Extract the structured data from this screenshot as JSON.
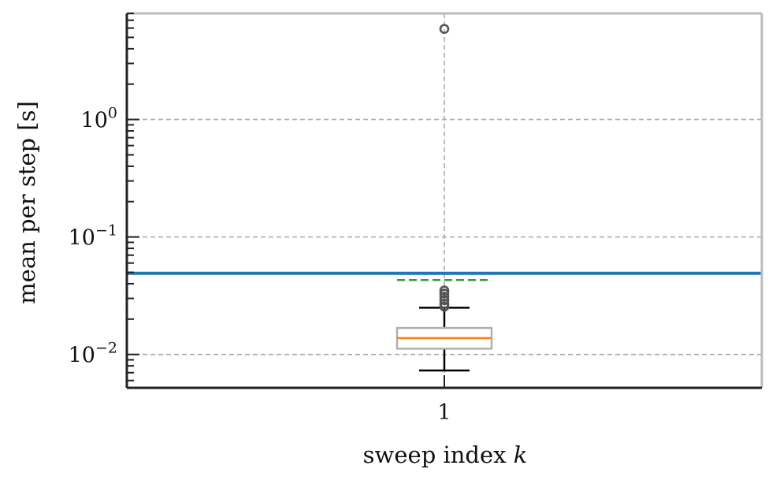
{
  "chart_data": {
    "type": "box",
    "xlabel": "sweep index",
    "xlabel_var": "k",
    "ylabel": "mean per step [s]",
    "yscale": "log",
    "ylim": [
      0.0052,
      8.0
    ],
    "grid": true,
    "categories": [
      "1"
    ],
    "y_tick_labels": [
      {
        "base": "10",
        "exp": "−2",
        "value": 0.01
      },
      {
        "base": "10",
        "exp": "−1",
        "value": 0.1
      },
      {
        "base": "10",
        "exp": "0",
        "value": 1
      }
    ],
    "box": {
      "category": "1",
      "whisker_low": 0.0073,
      "q1": 0.0112,
      "median": 0.0138,
      "q3": 0.0168,
      "whisker_high": 0.025,
      "mean": 0.043,
      "outliers": [
        0.0255,
        0.027,
        0.029,
        0.031,
        0.033,
        0.035,
        5.9
      ]
    },
    "reference_line": {
      "value": 0.049
    },
    "colors": {
      "reference_line": "#1f77b4",
      "median": "#ff7f0e",
      "mean": "#2ca02c",
      "box": "#b0b0b0",
      "whisker": "#000000",
      "outlier": "#555555",
      "grid": "#aaaaaa",
      "spine_left_bottom": "#222222",
      "spine_top_right": "#bbbbbb"
    }
  }
}
